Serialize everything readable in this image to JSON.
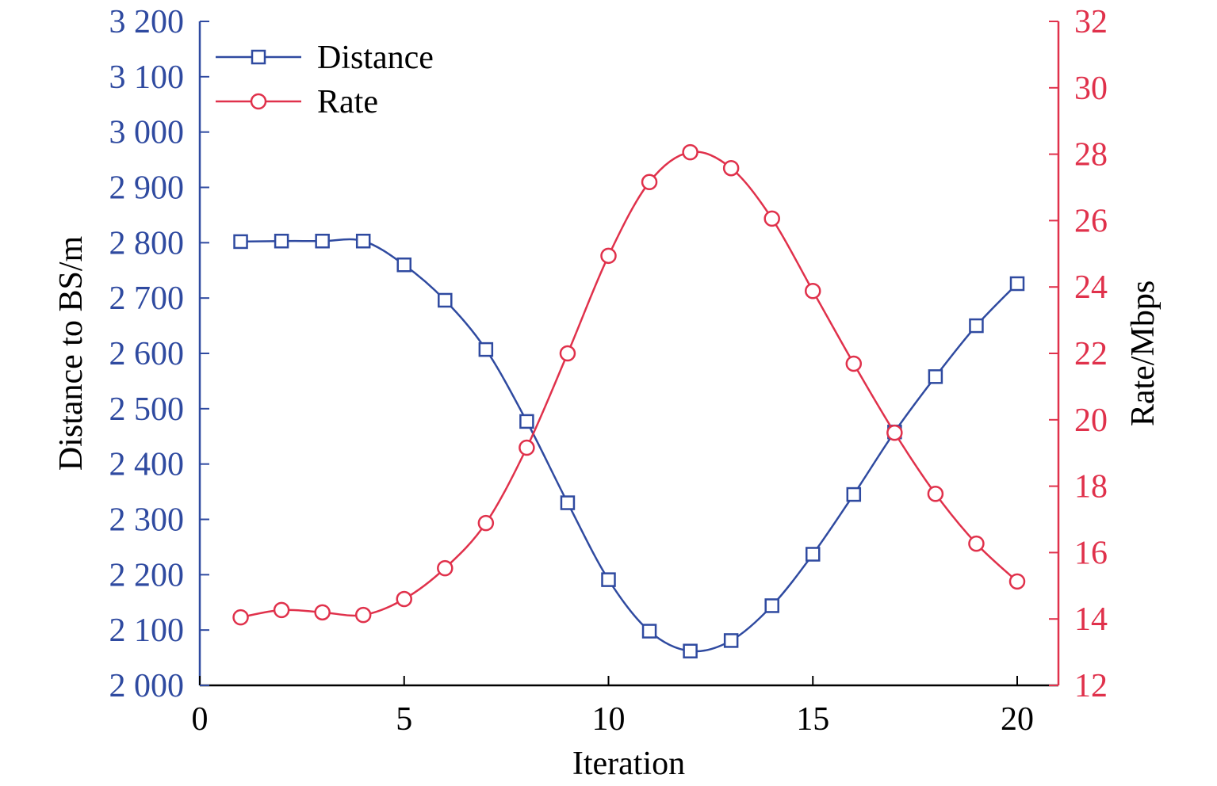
{
  "chart_data": {
    "type": "line",
    "xlabel": "Iteration",
    "ylabel": "Distance to BS/m",
    "y2label": "Rate/Mbps",
    "xlim": [
      0,
      21
    ],
    "ylim": [
      2000,
      3200
    ],
    "y2lim": [
      12,
      32
    ],
    "xticks": [
      0,
      5,
      10,
      15,
      20
    ],
    "xtick_labels": [
      "0",
      "5",
      "10",
      "15",
      "20"
    ],
    "yticks": [
      2000,
      2100,
      2200,
      2300,
      2400,
      2500,
      2600,
      2700,
      2800,
      2900,
      3000,
      3100,
      3200
    ],
    "ytick_labels": [
      "2 000",
      "2 100",
      "2 200",
      "2 300",
      "2 400",
      "2 500",
      "2 600",
      "2 700",
      "2 800",
      "2 900",
      "3 000",
      "3 100",
      "3 200"
    ],
    "y2ticks": [
      12,
      14,
      16,
      18,
      20,
      22,
      24,
      26,
      28,
      30,
      32
    ],
    "y2tick_labels": [
      "12",
      "14",
      "16",
      "18",
      "20",
      "22",
      "24",
      "26",
      "28",
      "30",
      "32"
    ],
    "grid": false,
    "legend_position": "top-left",
    "x": [
      1,
      2,
      3,
      4,
      5,
      6,
      7,
      8,
      9,
      10,
      11,
      12,
      13,
      14,
      15,
      16,
      17,
      18,
      19,
      20
    ],
    "series": [
      {
        "name": "Distance",
        "axis": "left",
        "marker": "square",
        "color": "#2f4aa0",
        "values": [
          2802,
          2803,
          2803,
          2803,
          2760,
          2696,
          2607,
          2477,
          2330,
          2191,
          2098,
          2062,
          2081,
          2144,
          2237,
          2345,
          2458,
          2558,
          2650,
          2726
        ]
      },
      {
        "name": "Rate",
        "axis": "right",
        "marker": "circle",
        "color": "#e0314b",
        "values": [
          14.05,
          14.27,
          14.2,
          14.12,
          14.6,
          15.53,
          16.89,
          19.16,
          22.0,
          24.94,
          27.16,
          28.06,
          27.58,
          26.06,
          23.88,
          21.69,
          19.61,
          17.77,
          16.27,
          15.13
        ]
      }
    ]
  }
}
